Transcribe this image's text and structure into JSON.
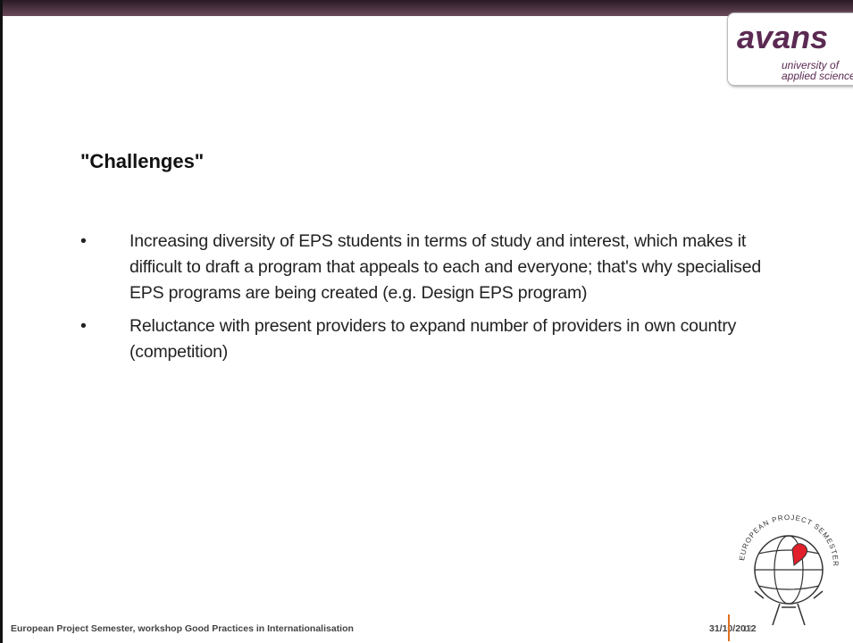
{
  "header": {
    "logo": {
      "name": "avans",
      "line1": "university of",
      "line2": "applied sciences"
    }
  },
  "title": "\"Challenges\"",
  "bullets": [
    "Increasing diversity of EPS students in terms of study and interest, which makes it difficult to draft a program that appeals to each and everyone; that's why specialised EPS programs are being created (e.g. Design EPS program)",
    "Reluctance with present providers to expand number of providers in own country (competition)"
  ],
  "emblem": {
    "text": "EUROPEAN PROJECT SEMESTER"
  },
  "footer": {
    "text": "European Project Semester, workshop Good Practices in Internationalisation",
    "date": "31/10/2012",
    "page": "12"
  }
}
